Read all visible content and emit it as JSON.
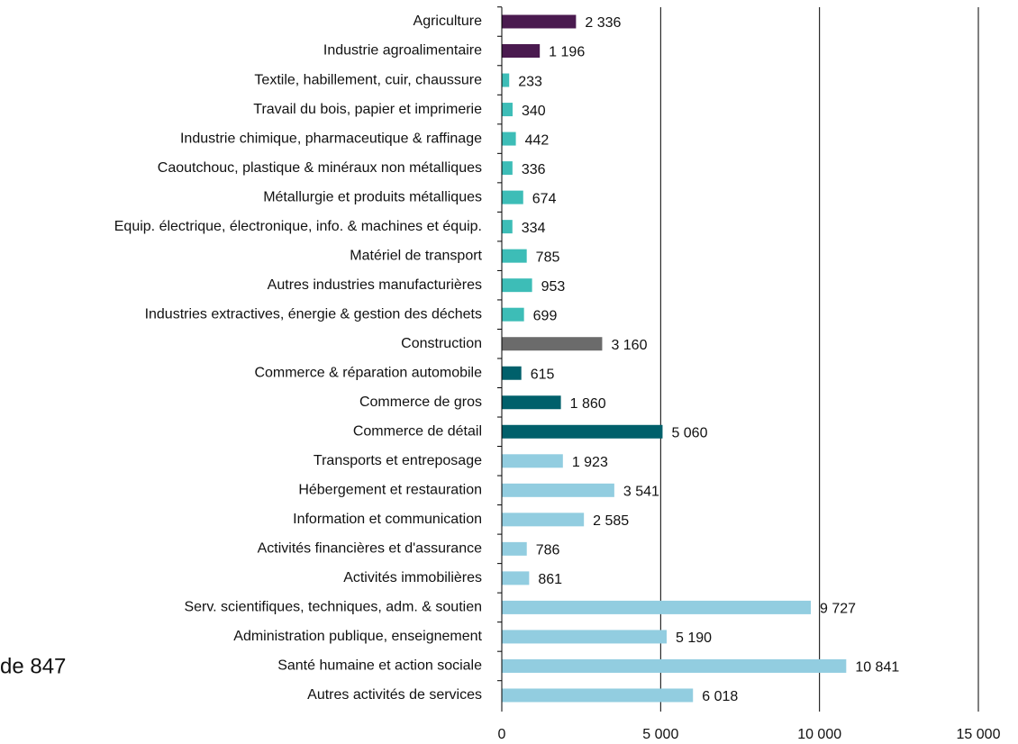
{
  "chart_data": {
    "type": "barh",
    "categories": [
      "Agriculture",
      "Industrie agroalimentaire",
      "Textile, habillement, cuir, chaussure",
      "Travail du bois, papier et imprimerie",
      "Industrie chimique, pharmaceutique & raffinage",
      "Caoutchouc, plastique & minéraux non métalliques",
      "Métallurgie et produits métalliques",
      "Equip. électrique, électronique, info. & machines et équip.",
      "Matériel de transport",
      "Autres industries manufacturières",
      "Industries extractives, énergie & gestion des déchets",
      "Construction",
      "Commerce & réparation automobile",
      "Commerce de gros",
      "Commerce de détail",
      "Transports et entreposage",
      "Hébergement et restauration",
      "Information et communication",
      "Activités financières et d'assurance",
      "Activités immobilières",
      "Serv. scientifiques, techniques, adm. & soutien",
      "Administration publique, enseignement",
      "Santé humaine et action sociale",
      "Autres activités de services"
    ],
    "values": [
      2336,
      1196,
      233,
      340,
      442,
      336,
      674,
      334,
      785,
      953,
      699,
      3160,
      615,
      1860,
      5060,
      1923,
      3541,
      2585,
      786,
      861,
      9727,
      5190,
      10841,
      6018
    ],
    "value_labels": [
      "2 336",
      "1 196",
      "233",
      "340",
      "442",
      "336",
      "674",
      "334",
      "785",
      "953",
      "699",
      "3 160",
      "615",
      "1 860",
      "5 060",
      "1 923",
      "3 541",
      "2 585",
      "786",
      "861",
      "9 727",
      "5 190",
      "10 841",
      "6 018"
    ],
    "colors": [
      "#4a1a4f",
      "#4a1a4f",
      "#3dbdb7",
      "#3dbdb7",
      "#3dbdb7",
      "#3dbdb7",
      "#3dbdb7",
      "#3dbdb7",
      "#3dbdb7",
      "#3dbdb7",
      "#3dbdb7",
      "#6b6b6b",
      "#00606b",
      "#00606b",
      "#00606b",
      "#92cde0",
      "#92cde0",
      "#92cde0",
      "#92cde0",
      "#92cde0",
      "#92cde0",
      "#92cde0",
      "#92cde0",
      "#92cde0"
    ],
    "xlim": [
      0,
      15000
    ],
    "xticks": [
      0,
      {
        "value": 5000,
        "label": "5 000"
      },
      {
        "value": 10000,
        "label": "10 000"
      },
      {
        "value": 15000,
        "label": "15 000"
      }
    ],
    "grid": true,
    "annotations": [
      "de 847"
    ]
  }
}
